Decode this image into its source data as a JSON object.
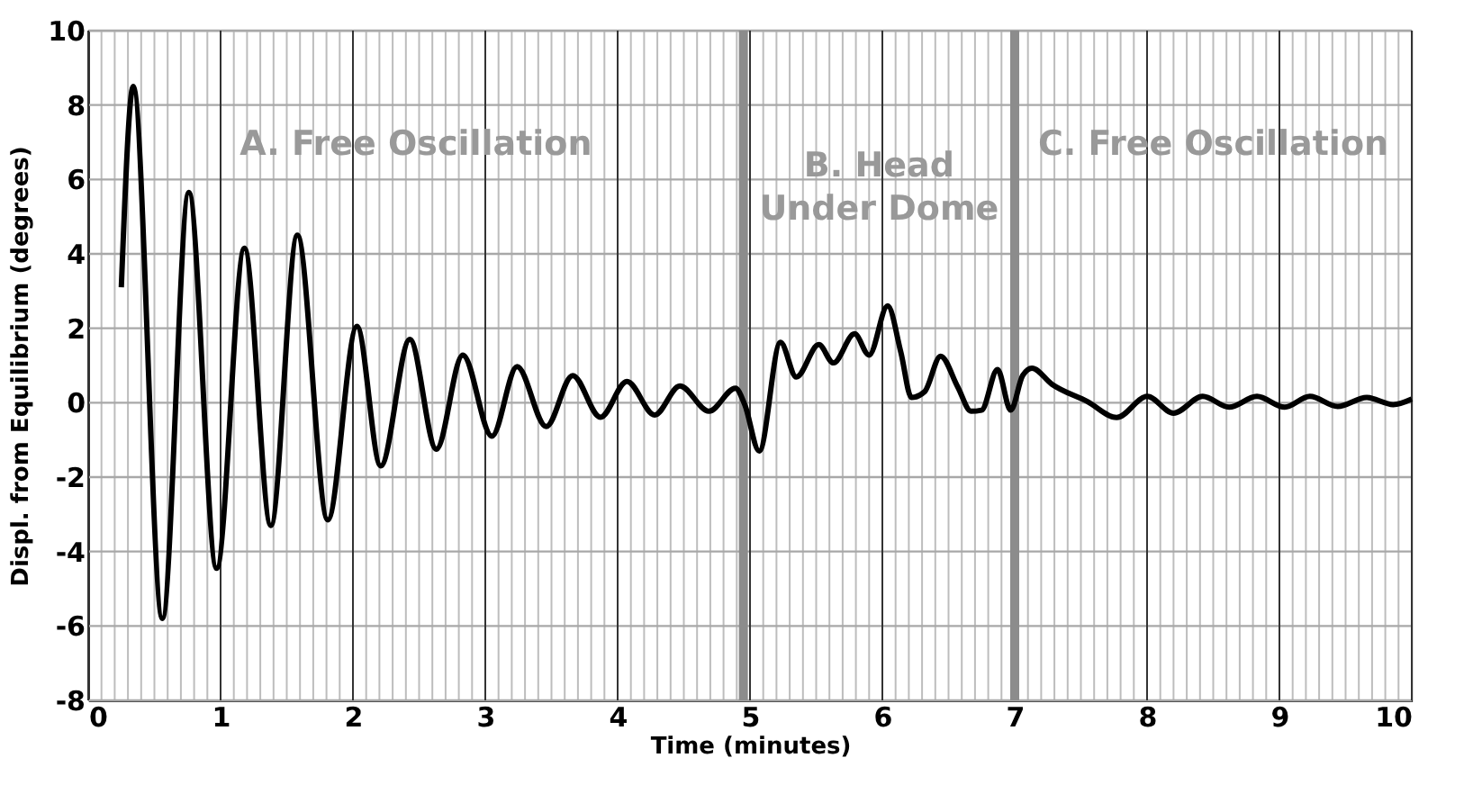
{
  "chart_data": {
    "type": "line",
    "xlabel": "Time (minutes)",
    "ylabel": "Displ. from Equilibrium (degrees)",
    "x": [
      0.25,
      0.34,
      0.56,
      0.76,
      0.97,
      1.18,
      1.38,
      1.58,
      1.81,
      2.03,
      2.21,
      2.43,
      2.63,
      2.83,
      3.05,
      3.24,
      3.46,
      3.66,
      3.87,
      4.07,
      4.28,
      4.47,
      4.69,
      4.89,
      4.96,
      5.07,
      5.23,
      5.35,
      5.52,
      5.63,
      5.79,
      5.9,
      6.04,
      6.14,
      6.22,
      6.32,
      6.44,
      6.57,
      6.67,
      6.75,
      6.87,
      6.97,
      7.06,
      7.13,
      7.28,
      7.55,
      7.77,
      8.0,
      8.2,
      8.42,
      8.62,
      8.83,
      9.04,
      9.23,
      9.44,
      9.66,
      9.86,
      10.0
    ],
    "series": [
      {
        "color": "#000000",
        "values": [
          3.1,
          8.5,
          -5.8,
          5.65,
          -4.45,
          4.15,
          -3.3,
          4.5,
          -3.15,
          2.05,
          -1.7,
          1.7,
          -1.25,
          1.28,
          -0.9,
          0.97,
          -0.64,
          0.73,
          -0.39,
          0.57,
          -0.33,
          0.45,
          -0.23,
          0.39,
          -0.05,
          -1.3,
          1.62,
          0.69,
          1.56,
          1.07,
          1.85,
          1.28,
          2.6,
          1.35,
          0.14,
          0.3,
          1.25,
          0.42,
          -0.23,
          -0.2,
          0.89,
          -0.2,
          0.73,
          0.93,
          0.5,
          0.03,
          -0.4,
          0.17,
          -0.28,
          0.17,
          -0.12,
          0.17,
          -0.12,
          0.17,
          -0.1,
          0.14,
          -0.05,
          0.1
        ]
      }
    ],
    "xlim": [
      0,
      10
    ],
    "xticks": [
      0,
      1,
      2,
      3,
      4,
      5,
      6,
      7,
      8,
      9,
      10
    ],
    "ylim": [
      -8,
      10
    ],
    "yticks": [
      -8,
      -6,
      -4,
      -2,
      0,
      2,
      4,
      6,
      8,
      10
    ],
    "ref_lines": [
      {
        "axis": "x",
        "value": 4.95,
        "color": "#8c8c8c"
      },
      {
        "axis": "x",
        "value": 7.0,
        "color": "#8c8c8c"
      }
    ],
    "annotations": [
      "A. Free Oscillation",
      "B. Head\nUnder Dome",
      "C. Free Oscillation"
    ],
    "grid": true,
    "marker": "none",
    "line_style": "solid"
  }
}
